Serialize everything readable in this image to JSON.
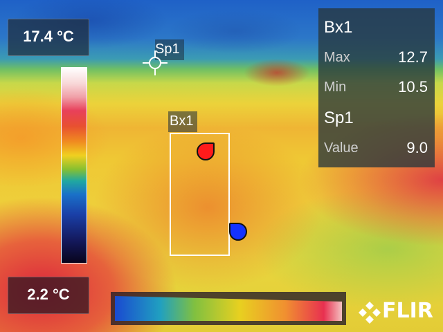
{
  "scale": {
    "max_label": "17.4 °C",
    "min_label": "2.2 °C"
  },
  "spot": {
    "label": "Sp1"
  },
  "box": {
    "label": "Bx1"
  },
  "results": {
    "box_title": "Bx1",
    "max_key": "Max",
    "max_value": "12.7",
    "min_key": "Min",
    "min_value": "10.5",
    "spot_title": "Sp1",
    "value_key": "Value",
    "value_value": "9.0"
  },
  "logo": {
    "text": "FLIR"
  },
  "colors": {
    "hot_marker": "#ff1b1b",
    "cold_marker": "#1432ff",
    "panel": "#1e2d3c"
  },
  "icons": [
    "crosshair-icon",
    "hot-spot-marker-icon",
    "cold-spot-marker-icon",
    "flir-logo-icon"
  ]
}
